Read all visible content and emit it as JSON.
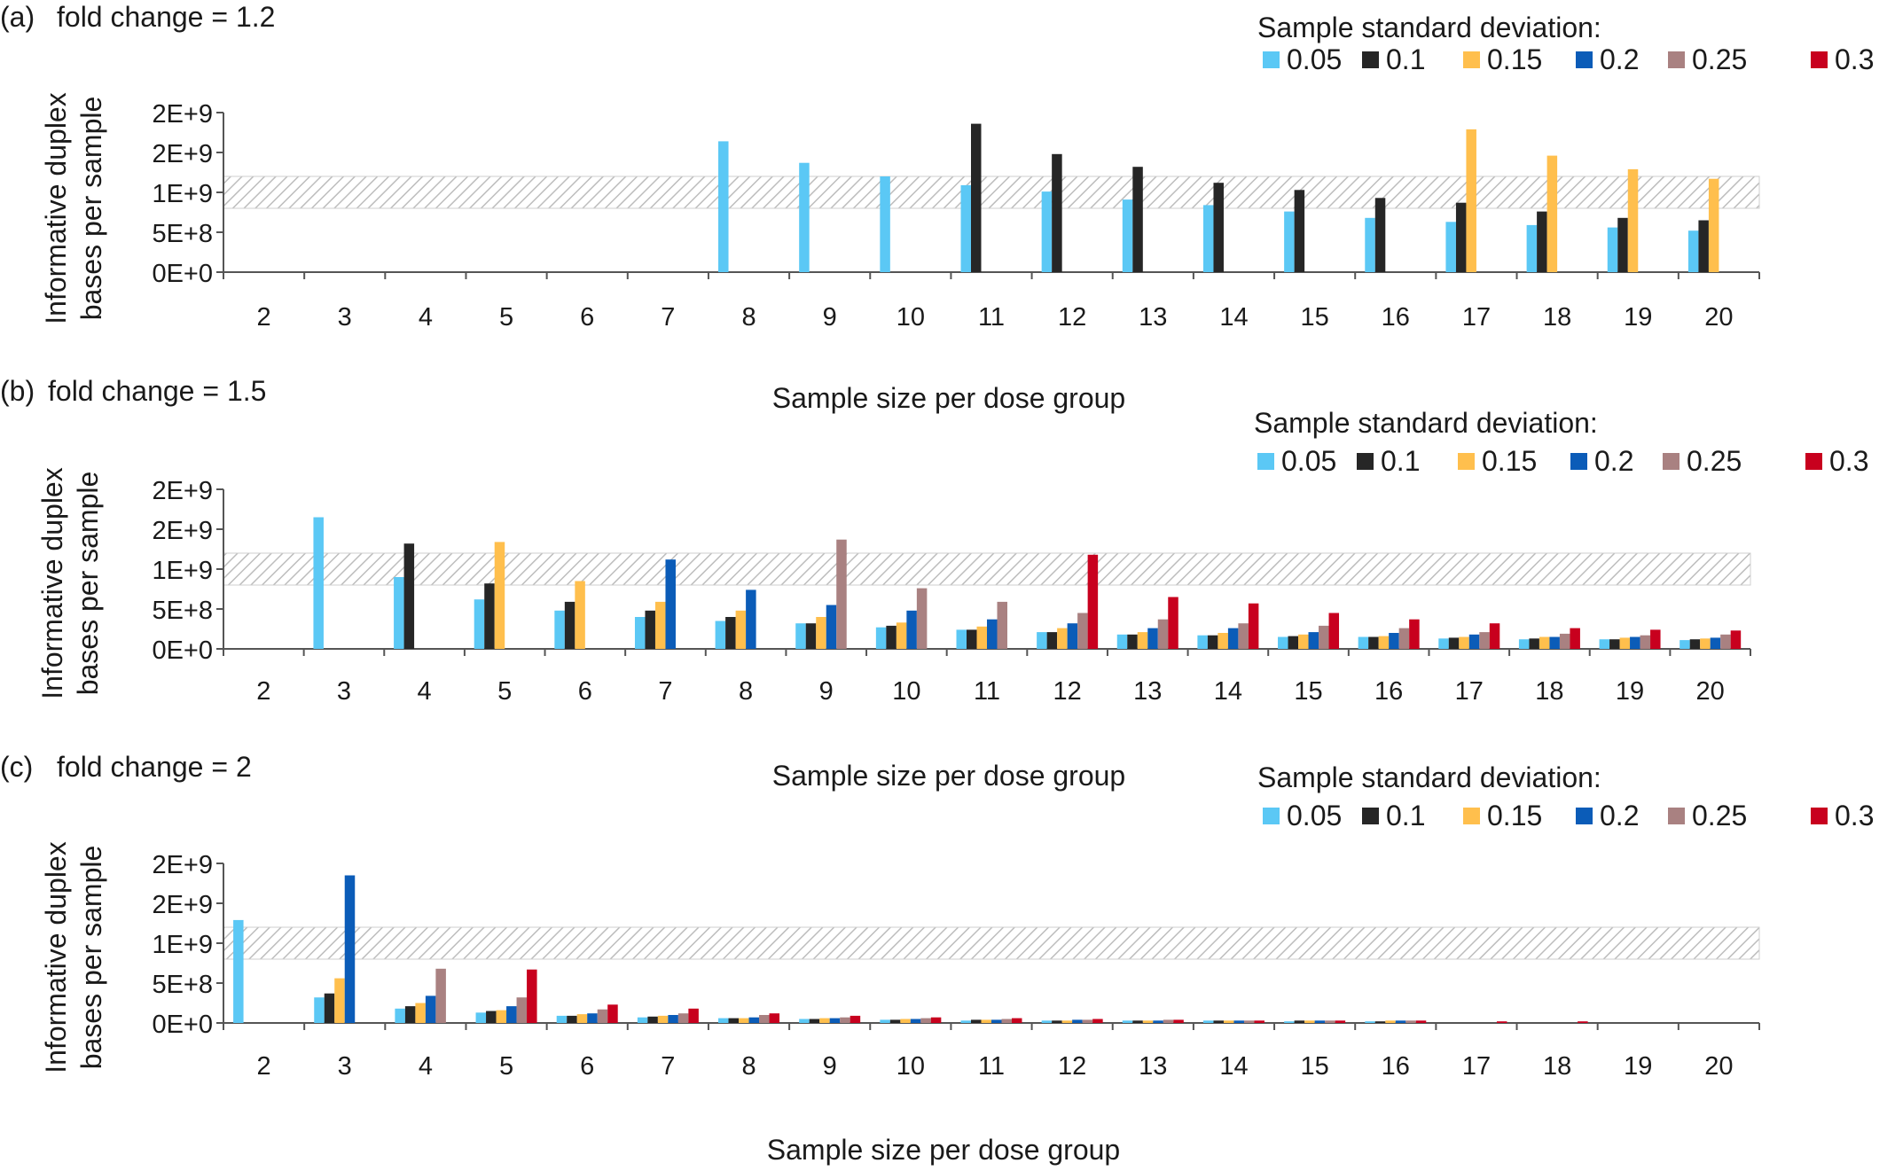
{
  "legend_title": "Sample standard deviation:",
  "series_names": [
    "0.05",
    "0.1",
    "0.15",
    "0.2",
    "0.25",
    "0.3"
  ],
  "series_colors": [
    "#5bc8f5",
    "#262626",
    "#ffbf4d",
    "#0b5cb8",
    "#a98181",
    "#c8001e"
  ],
  "band_color": "#bdbdbd",
  "chart_data": [
    {
      "type": "bar",
      "panel_label": "(a)",
      "title": "fold change = 1.2",
      "xlabel": "Sample size per dose group",
      "ylabel_lines": [
        "Informative duplex",
        "bases per sample"
      ],
      "yticks": [
        "0E+0",
        "5E+8",
        "1E+9",
        "2E+9",
        "2E+9"
      ],
      "ylim": [
        0,
        2000000000
      ],
      "highlight_band": [
        800000000,
        1200000000
      ],
      "categories": [
        "2",
        "3",
        "4",
        "5",
        "6",
        "7",
        "8",
        "9",
        "10",
        "11",
        "12",
        "13",
        "14",
        "15",
        "16",
        "17",
        "18",
        "19",
        "20"
      ],
      "series": [
        {
          "name": "0.05",
          "values": [
            null,
            null,
            null,
            null,
            null,
            null,
            1640000000,
            1370000000,
            1200000000,
            1090000000,
            1010000000,
            910000000,
            840000000,
            760000000,
            680000000,
            630000000,
            590000000,
            560000000,
            520000000
          ]
        },
        {
          "name": "0.1",
          "values": [
            null,
            null,
            null,
            null,
            null,
            null,
            null,
            null,
            null,
            1860000000,
            1480000000,
            1320000000,
            1120000000,
            1030000000,
            930000000,
            870000000,
            760000000,
            680000000,
            650000000
          ]
        },
        {
          "name": "0.15",
          "values": [
            null,
            null,
            null,
            null,
            null,
            null,
            null,
            null,
            null,
            null,
            null,
            null,
            null,
            null,
            null,
            1790000000,
            1460000000,
            1290000000,
            1170000000
          ]
        },
        {
          "name": "0.2",
          "values": [
            null,
            null,
            null,
            null,
            null,
            null,
            null,
            null,
            null,
            null,
            null,
            null,
            null,
            null,
            null,
            null,
            null,
            null,
            null
          ]
        },
        {
          "name": "0.25",
          "values": [
            null,
            null,
            null,
            null,
            null,
            null,
            null,
            null,
            null,
            null,
            null,
            null,
            null,
            null,
            null,
            null,
            null,
            null,
            null
          ]
        },
        {
          "name": "0.3",
          "values": [
            null,
            null,
            null,
            null,
            null,
            null,
            null,
            null,
            null,
            null,
            null,
            null,
            null,
            null,
            null,
            null,
            null,
            null,
            null
          ]
        }
      ]
    },
    {
      "type": "bar",
      "panel_label": "(b)",
      "title": "fold change = 1.5",
      "xlabel": "Sample size per dose group",
      "ylabel_lines": [
        "Informative duplex",
        "bases per sample"
      ],
      "yticks": [
        "0E+0",
        "5E+8",
        "1E+9",
        "2E+9",
        "2E+9"
      ],
      "ylim": [
        0,
        2000000000
      ],
      "highlight_band": [
        800000000,
        1200000000
      ],
      "categories": [
        "2",
        "3",
        "4",
        "5",
        "6",
        "7",
        "8",
        "9",
        "10",
        "11",
        "12",
        "13",
        "14",
        "15",
        "16",
        "17",
        "18",
        "19",
        "20"
      ],
      "series": [
        {
          "name": "0.05",
          "values": [
            null,
            1650000000,
            900000000,
            620000000,
            480000000,
            400000000,
            350000000,
            320000000,
            270000000,
            240000000,
            210000000,
            180000000,
            170000000,
            150000000,
            150000000,
            130000000,
            120000000,
            120000000,
            110000000
          ]
        },
        {
          "name": "0.1",
          "values": [
            null,
            null,
            1320000000,
            820000000,
            590000000,
            480000000,
            400000000,
            320000000,
            290000000,
            240000000,
            210000000,
            180000000,
            170000000,
            160000000,
            150000000,
            140000000,
            130000000,
            120000000,
            120000000
          ]
        },
        {
          "name": "0.15",
          "values": [
            null,
            null,
            null,
            1340000000,
            850000000,
            590000000,
            480000000,
            400000000,
            330000000,
            280000000,
            260000000,
            210000000,
            200000000,
            180000000,
            160000000,
            150000000,
            150000000,
            140000000,
            130000000
          ]
        },
        {
          "name": "0.2",
          "values": [
            null,
            null,
            null,
            null,
            null,
            1120000000,
            740000000,
            550000000,
            480000000,
            370000000,
            320000000,
            260000000,
            260000000,
            210000000,
            200000000,
            180000000,
            150000000,
            150000000,
            140000000
          ]
        },
        {
          "name": "0.25",
          "values": [
            null,
            null,
            null,
            null,
            null,
            null,
            null,
            1370000000,
            760000000,
            590000000,
            450000000,
            370000000,
            320000000,
            290000000,
            260000000,
            210000000,
            190000000,
            170000000,
            180000000
          ]
        },
        {
          "name": "0.3",
          "values": [
            null,
            null,
            null,
            null,
            null,
            null,
            null,
            null,
            null,
            null,
            1180000000,
            650000000,
            570000000,
            450000000,
            370000000,
            320000000,
            260000000,
            240000000,
            230000000
          ]
        }
      ]
    },
    {
      "type": "bar",
      "panel_label": "(c)",
      "title": "fold change = 2",
      "xlabel": "Sample size per dose group",
      "ylabel_lines": [
        "Informative duplex",
        "bases per sample"
      ],
      "yticks": [
        "0E+0",
        "5E+8",
        "1E+9",
        "2E+9",
        "2E+9"
      ],
      "ylim": [
        0,
        2000000000
      ],
      "highlight_band": [
        800000000,
        1200000000
      ],
      "categories": [
        "2",
        "3",
        "4",
        "5",
        "6",
        "7",
        "8",
        "9",
        "10",
        "11",
        "12",
        "13",
        "14",
        "15",
        "16",
        "17",
        "18",
        "19",
        "20"
      ],
      "series": [
        {
          "name": "0.05",
          "values": [
            1290000000,
            320000000,
            180000000,
            130000000,
            90000000,
            70000000,
            60000000,
            50000000,
            40000000,
            30000000,
            30000000,
            30000000,
            30000000,
            20000000,
            20000000,
            null,
            null,
            null,
            null
          ]
        },
        {
          "name": "0.1",
          "values": [
            null,
            370000000,
            210000000,
            150000000,
            90000000,
            80000000,
            60000000,
            50000000,
            40000000,
            40000000,
            30000000,
            30000000,
            30000000,
            30000000,
            20000000,
            null,
            null,
            null,
            null
          ]
        },
        {
          "name": "0.15",
          "values": [
            null,
            560000000,
            250000000,
            160000000,
            110000000,
            90000000,
            60000000,
            60000000,
            50000000,
            40000000,
            30000000,
            30000000,
            30000000,
            30000000,
            30000000,
            null,
            null,
            null,
            null
          ]
        },
        {
          "name": "0.2",
          "values": [
            null,
            1850000000,
            340000000,
            210000000,
            120000000,
            100000000,
            70000000,
            60000000,
            50000000,
            40000000,
            40000000,
            30000000,
            30000000,
            30000000,
            30000000,
            null,
            null,
            null,
            null
          ]
        },
        {
          "name": "0.25",
          "values": [
            null,
            null,
            680000000,
            320000000,
            170000000,
            120000000,
            100000000,
            70000000,
            60000000,
            50000000,
            40000000,
            40000000,
            30000000,
            30000000,
            30000000,
            null,
            null,
            null,
            null
          ]
        },
        {
          "name": "0.3",
          "values": [
            null,
            null,
            null,
            670000000,
            230000000,
            180000000,
            120000000,
            90000000,
            70000000,
            60000000,
            50000000,
            40000000,
            30000000,
            30000000,
            30000000,
            20000000,
            20000000,
            null,
            null
          ]
        }
      ]
    }
  ]
}
